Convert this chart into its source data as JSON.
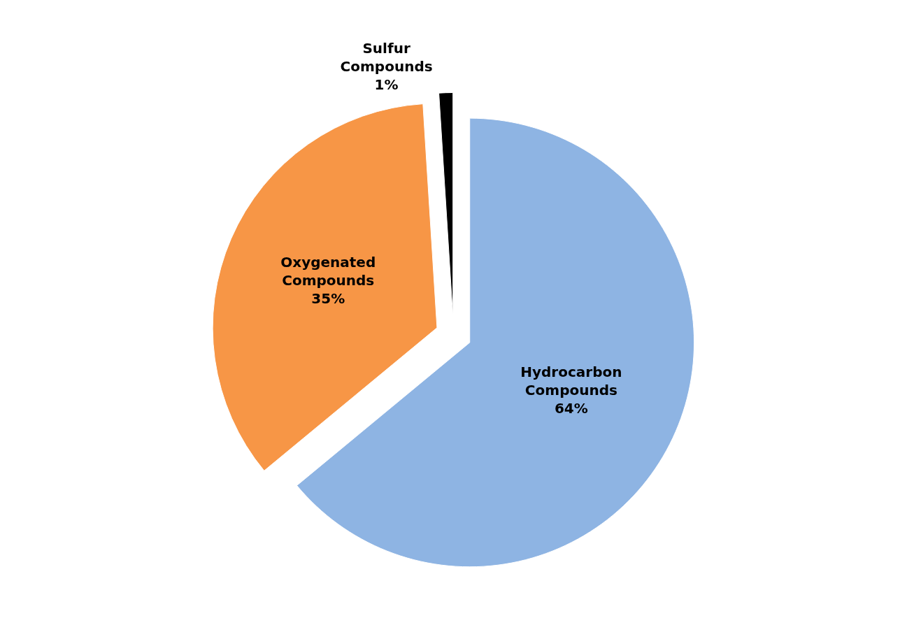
{
  "chart_data": {
    "type": "pie",
    "categories": [
      "Hydrocarbon Compounds",
      "Oxygenated Compounds",
      "Sulfur Compounds"
    ],
    "values": [
      64,
      35,
      1
    ],
    "value_labels": [
      "64%",
      "35%",
      "1%"
    ],
    "colors": [
      "#8eb4e3",
      "#f79646",
      "#000000"
    ],
    "legend": false
  }
}
